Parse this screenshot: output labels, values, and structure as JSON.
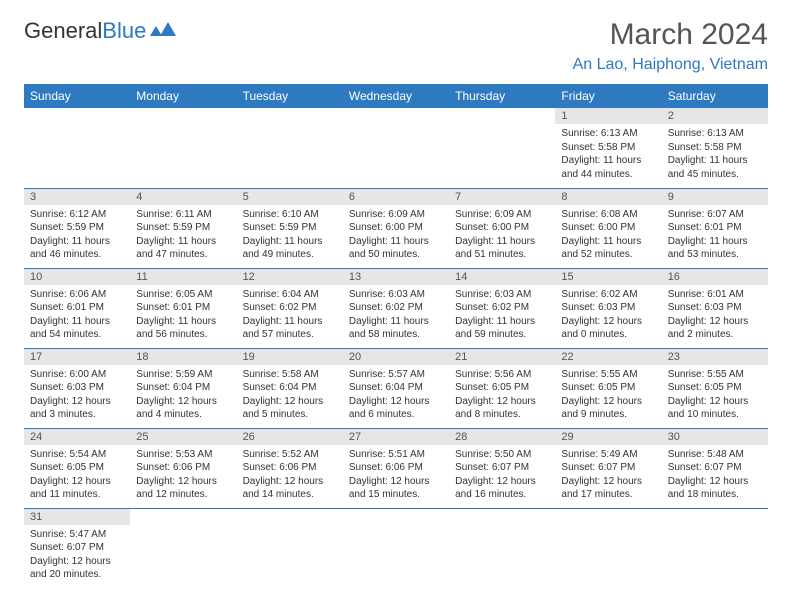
{
  "logo": {
    "general": "General",
    "blue": "Blue"
  },
  "title": "March 2024",
  "location": "An Lao, Haiphong, Vietnam",
  "colors": {
    "header_bg": "#2d7ac0",
    "header_text": "#ffffff",
    "daynum_bg": "#e6e6e6",
    "border": "#2d7ac0"
  },
  "weekday_labels": [
    "Sunday",
    "Monday",
    "Tuesday",
    "Wednesday",
    "Thursday",
    "Friday",
    "Saturday"
  ],
  "days": {
    "1": {
      "sunrise": "Sunrise: 6:13 AM",
      "sunset": "Sunset: 5:58 PM",
      "daylight": "Daylight: 11 hours and 44 minutes."
    },
    "2": {
      "sunrise": "Sunrise: 6:13 AM",
      "sunset": "Sunset: 5:58 PM",
      "daylight": "Daylight: 11 hours and 45 minutes."
    },
    "3": {
      "sunrise": "Sunrise: 6:12 AM",
      "sunset": "Sunset: 5:59 PM",
      "daylight": "Daylight: 11 hours and 46 minutes."
    },
    "4": {
      "sunrise": "Sunrise: 6:11 AM",
      "sunset": "Sunset: 5:59 PM",
      "daylight": "Daylight: 11 hours and 47 minutes."
    },
    "5": {
      "sunrise": "Sunrise: 6:10 AM",
      "sunset": "Sunset: 5:59 PM",
      "daylight": "Daylight: 11 hours and 49 minutes."
    },
    "6": {
      "sunrise": "Sunrise: 6:09 AM",
      "sunset": "Sunset: 6:00 PM",
      "daylight": "Daylight: 11 hours and 50 minutes."
    },
    "7": {
      "sunrise": "Sunrise: 6:09 AM",
      "sunset": "Sunset: 6:00 PM",
      "daylight": "Daylight: 11 hours and 51 minutes."
    },
    "8": {
      "sunrise": "Sunrise: 6:08 AM",
      "sunset": "Sunset: 6:00 PM",
      "daylight": "Daylight: 11 hours and 52 minutes."
    },
    "9": {
      "sunrise": "Sunrise: 6:07 AM",
      "sunset": "Sunset: 6:01 PM",
      "daylight": "Daylight: 11 hours and 53 minutes."
    },
    "10": {
      "sunrise": "Sunrise: 6:06 AM",
      "sunset": "Sunset: 6:01 PM",
      "daylight": "Daylight: 11 hours and 54 minutes."
    },
    "11": {
      "sunrise": "Sunrise: 6:05 AM",
      "sunset": "Sunset: 6:01 PM",
      "daylight": "Daylight: 11 hours and 56 minutes."
    },
    "12": {
      "sunrise": "Sunrise: 6:04 AM",
      "sunset": "Sunset: 6:02 PM",
      "daylight": "Daylight: 11 hours and 57 minutes."
    },
    "13": {
      "sunrise": "Sunrise: 6:03 AM",
      "sunset": "Sunset: 6:02 PM",
      "daylight": "Daylight: 11 hours and 58 minutes."
    },
    "14": {
      "sunrise": "Sunrise: 6:03 AM",
      "sunset": "Sunset: 6:02 PM",
      "daylight": "Daylight: 11 hours and 59 minutes."
    },
    "15": {
      "sunrise": "Sunrise: 6:02 AM",
      "sunset": "Sunset: 6:03 PM",
      "daylight": "Daylight: 12 hours and 0 minutes."
    },
    "16": {
      "sunrise": "Sunrise: 6:01 AM",
      "sunset": "Sunset: 6:03 PM",
      "daylight": "Daylight: 12 hours and 2 minutes."
    },
    "17": {
      "sunrise": "Sunrise: 6:00 AM",
      "sunset": "Sunset: 6:03 PM",
      "daylight": "Daylight: 12 hours and 3 minutes."
    },
    "18": {
      "sunrise": "Sunrise: 5:59 AM",
      "sunset": "Sunset: 6:04 PM",
      "daylight": "Daylight: 12 hours and 4 minutes."
    },
    "19": {
      "sunrise": "Sunrise: 5:58 AM",
      "sunset": "Sunset: 6:04 PM",
      "daylight": "Daylight: 12 hours and 5 minutes."
    },
    "20": {
      "sunrise": "Sunrise: 5:57 AM",
      "sunset": "Sunset: 6:04 PM",
      "daylight": "Daylight: 12 hours and 6 minutes."
    },
    "21": {
      "sunrise": "Sunrise: 5:56 AM",
      "sunset": "Sunset: 6:05 PM",
      "daylight": "Daylight: 12 hours and 8 minutes."
    },
    "22": {
      "sunrise": "Sunrise: 5:55 AM",
      "sunset": "Sunset: 6:05 PM",
      "daylight": "Daylight: 12 hours and 9 minutes."
    },
    "23": {
      "sunrise": "Sunrise: 5:55 AM",
      "sunset": "Sunset: 6:05 PM",
      "daylight": "Daylight: 12 hours and 10 minutes."
    },
    "24": {
      "sunrise": "Sunrise: 5:54 AM",
      "sunset": "Sunset: 6:05 PM",
      "daylight": "Daylight: 12 hours and 11 minutes."
    },
    "25": {
      "sunrise": "Sunrise: 5:53 AM",
      "sunset": "Sunset: 6:06 PM",
      "daylight": "Daylight: 12 hours and 12 minutes."
    },
    "26": {
      "sunrise": "Sunrise: 5:52 AM",
      "sunset": "Sunset: 6:06 PM",
      "daylight": "Daylight: 12 hours and 14 minutes."
    },
    "27": {
      "sunrise": "Sunrise: 5:51 AM",
      "sunset": "Sunset: 6:06 PM",
      "daylight": "Daylight: 12 hours and 15 minutes."
    },
    "28": {
      "sunrise": "Sunrise: 5:50 AM",
      "sunset": "Sunset: 6:07 PM",
      "daylight": "Daylight: 12 hours and 16 minutes."
    },
    "29": {
      "sunrise": "Sunrise: 5:49 AM",
      "sunset": "Sunset: 6:07 PM",
      "daylight": "Daylight: 12 hours and 17 minutes."
    },
    "30": {
      "sunrise": "Sunrise: 5:48 AM",
      "sunset": "Sunset: 6:07 PM",
      "daylight": "Daylight: 12 hours and 18 minutes."
    },
    "31": {
      "sunrise": "Sunrise: 5:47 AM",
      "sunset": "Sunset: 6:07 PM",
      "daylight": "Daylight: 12 hours and 20 minutes."
    }
  },
  "daynums": {
    "1": "1",
    "2": "2",
    "3": "3",
    "4": "4",
    "5": "5",
    "6": "6",
    "7": "7",
    "8": "8",
    "9": "9",
    "10": "10",
    "11": "11",
    "12": "12",
    "13": "13",
    "14": "14",
    "15": "15",
    "16": "16",
    "17": "17",
    "18": "18",
    "19": "19",
    "20": "20",
    "21": "21",
    "22": "22",
    "23": "23",
    "24": "24",
    "25": "25",
    "26": "26",
    "27": "27",
    "28": "28",
    "29": "29",
    "30": "30",
    "31": "31"
  }
}
